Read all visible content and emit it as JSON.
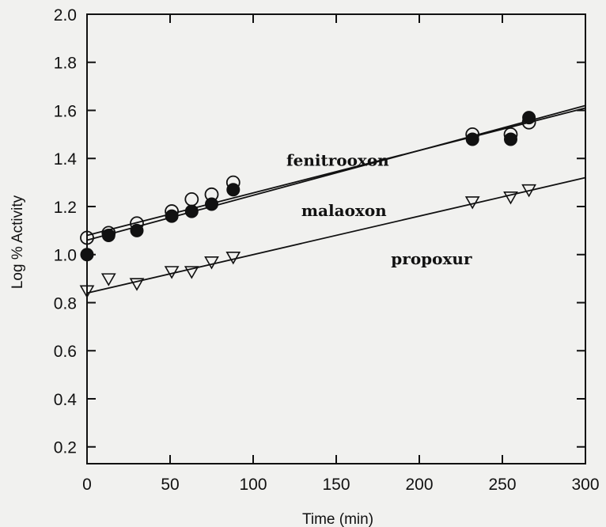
{
  "chart_data": {
    "type": "scatter",
    "title": "",
    "xlabel": "Time (min)",
    "ylabel": "Log % Activity",
    "xlim": [
      0,
      300
    ],
    "ylim": [
      0.13,
      2.0
    ],
    "xticks": [
      0,
      50,
      100,
      150,
      200,
      250,
      300
    ],
    "yticks": [
      0.2,
      0.4,
      0.6,
      0.8,
      1.0,
      1.2,
      1.4,
      1.6,
      1.8,
      2.0
    ],
    "ytick_labels": [
      "0.2",
      "0.4",
      "0.6",
      "0.8",
      "1.0",
      "1.2",
      "1.4",
      "1.6",
      "1.8",
      "2.0"
    ],
    "grid": false,
    "legend": "none",
    "series": [
      {
        "name": "fenitrooxon",
        "marker": "open-circle",
        "x": [
          0,
          13,
          30,
          51,
          63,
          75,
          88,
          232,
          255,
          266
        ],
        "y": [
          1.07,
          1.09,
          1.13,
          1.18,
          1.23,
          1.25,
          1.3,
          1.5,
          1.5,
          1.55
        ],
        "fit": [
          [
            0,
            1.08
          ],
          [
            300,
            1.61
          ]
        ]
      },
      {
        "name": "malaoxon",
        "marker": "filled-circle",
        "x": [
          0,
          13,
          30,
          51,
          63,
          75,
          88,
          232,
          255,
          266
        ],
        "y": [
          1.0,
          1.08,
          1.1,
          1.16,
          1.18,
          1.21,
          1.27,
          1.48,
          1.48,
          1.57
        ],
        "fit": [
          [
            0,
            1.06
          ],
          [
            300,
            1.62
          ]
        ]
      },
      {
        "name": "propoxur",
        "marker": "open-triangle-down",
        "x": [
          0,
          13,
          30,
          51,
          63,
          75,
          88,
          232,
          255,
          266
        ],
        "y": [
          0.85,
          0.9,
          0.88,
          0.93,
          0.93,
          0.97,
          0.99,
          1.22,
          1.24,
          1.27
        ],
        "fit": [
          [
            0,
            0.84
          ],
          [
            300,
            1.32
          ]
        ]
      }
    ],
    "annotations": [
      {
        "text": "fenitrooxon",
        "x": 120,
        "y": 1.37
      },
      {
        "text": "malaoxon",
        "x": 129,
        "y": 1.16
      },
      {
        "text": "propoxur",
        "x": 183,
        "y": 0.96
      }
    ]
  }
}
